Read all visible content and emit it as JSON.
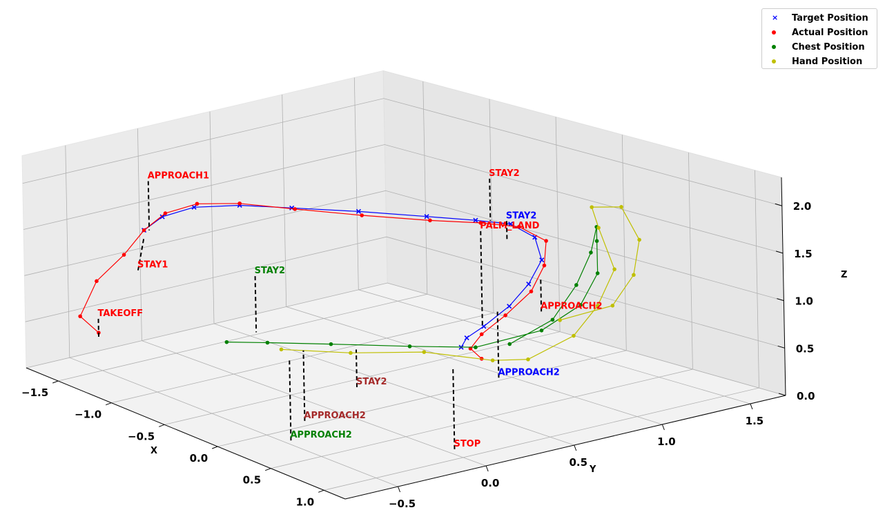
{
  "chart_data": {
    "type": "scatter3d",
    "xlabel": "X",
    "ylabel": "Y",
    "zlabel": "Z",
    "xlim": [
      -1.8,
      1.2
    ],
    "ylim": [
      -0.8,
      1.7
    ],
    "zlim": [
      0.0,
      2.3
    ],
    "x_ticks": [
      "−1.5",
      "−1.0",
      "−0.5",
      "0.0",
      "0.5",
      "1.0"
    ],
    "y_ticks": [
      "−0.5",
      "0.0",
      "0.5",
      "1.0",
      "1.5"
    ],
    "z_ticks": [
      "0.0",
      "0.5",
      "1.0",
      "1.5",
      "2.0"
    ],
    "grid": true,
    "legend_position": "top-right",
    "series": [
      {
        "name": "Target Position",
        "color": "#0000ff",
        "marker": "x",
        "points": [
          [
            -1.3,
            -0.35,
            1.55
          ],
          [
            -1.2,
            -0.3,
            1.72
          ],
          [
            -1.05,
            -0.2,
            1.85
          ],
          [
            -0.85,
            -0.05,
            1.9
          ],
          [
            -0.6,
            0.1,
            1.92
          ],
          [
            -0.3,
            0.3,
            1.93
          ],
          [
            0.0,
            0.5,
            1.92
          ],
          [
            0.2,
            0.65,
            1.9
          ],
          [
            0.35,
            0.75,
            1.88
          ],
          [
            0.45,
            0.82,
            1.75
          ],
          [
            0.6,
            0.75,
            1.6
          ],
          [
            0.7,
            0.6,
            1.45
          ],
          [
            0.75,
            0.45,
            1.3
          ],
          [
            0.75,
            0.3,
            1.15
          ],
          [
            0.72,
            0.22,
            1.05
          ],
          [
            0.7,
            0.2,
            0.95
          ]
        ]
      },
      {
        "name": "Actual Position",
        "color": "#ff0000",
        "marker": "o",
        "points": [
          [
            -1.25,
            -0.7,
            0.6
          ],
          [
            -1.35,
            -0.75,
            0.75
          ],
          [
            -1.4,
            -0.6,
            1.05
          ],
          [
            -1.35,
            -0.45,
            1.3
          ],
          [
            -1.3,
            -0.35,
            1.55
          ],
          [
            -1.2,
            -0.28,
            1.75
          ],
          [
            -1.05,
            -0.18,
            1.88
          ],
          [
            -0.85,
            -0.05,
            1.92
          ],
          [
            -0.6,
            0.12,
            1.9
          ],
          [
            -0.3,
            0.32,
            1.88
          ],
          [
            0.0,
            0.52,
            1.87
          ],
          [
            0.2,
            0.68,
            1.86
          ],
          [
            0.35,
            0.8,
            1.83
          ],
          [
            0.5,
            0.85,
            1.72
          ],
          [
            0.62,
            0.75,
            1.55
          ],
          [
            0.72,
            0.6,
            1.38
          ],
          [
            0.76,
            0.42,
            1.22
          ],
          [
            0.76,
            0.28,
            1.08
          ],
          [
            0.75,
            0.22,
            0.95
          ],
          [
            0.8,
            0.25,
            0.85
          ]
        ]
      },
      {
        "name": "Chest Position",
        "color": "#008000",
        "marker": "o",
        "points": [
          [
            -0.05,
            -0.7,
            1.05
          ],
          [
            0.1,
            -0.55,
            1.05
          ],
          [
            0.3,
            -0.3,
            1.02
          ],
          [
            0.55,
            0.0,
            0.98
          ],
          [
            0.75,
            0.25,
            0.95
          ],
          [
            0.8,
            0.6,
            1.0
          ],
          [
            0.7,
            0.9,
            1.1
          ],
          [
            0.5,
            1.15,
            1.25
          ],
          [
            0.3,
            1.3,
            1.45
          ],
          [
            0.3,
            1.3,
            1.6
          ],
          [
            0.45,
            1.15,
            1.45
          ],
          [
            0.6,
            0.95,
            1.25
          ],
          [
            0.75,
            0.7,
            1.05
          ],
          [
            0.82,
            0.4,
            0.95
          ]
        ]
      },
      {
        "name": "Hand Position",
        "color": "#bfbf00",
        "marker": "o",
        "points": [
          [
            0.15,
            -0.5,
            0.98
          ],
          [
            0.4,
            -0.25,
            0.95
          ],
          [
            0.6,
            0.05,
            0.92
          ],
          [
            0.82,
            0.3,
            0.82
          ],
          [
            0.9,
            0.45,
            0.8
          ],
          [
            0.85,
            0.75,
            0.9
          ],
          [
            0.7,
            1.0,
            1.05
          ],
          [
            0.5,
            1.25,
            1.25
          ],
          [
            0.25,
            1.35,
            1.55
          ],
          [
            0.2,
            1.35,
            1.75
          ],
          [
            0.3,
            1.45,
            1.75
          ],
          [
            0.5,
            1.4,
            1.5
          ],
          [
            0.65,
            1.25,
            1.25
          ],
          [
            0.75,
            1.05,
            1.05
          ],
          [
            0.6,
            0.85,
            0.92
          ]
        ]
      }
    ],
    "annotations": [
      {
        "text": "APPROACH1",
        "color": "#ff0000",
        "point": [
          -1.28,
          -0.33,
          2.08
        ],
        "stem_to": [
          -1.28,
          -0.33,
          1.55
        ]
      },
      {
        "text": "STAY1",
        "color": "#ff0000",
        "point": [
          -1.32,
          -0.38,
          1.12
        ],
        "stem_to": [
          -1.3,
          -0.35,
          1.48
        ]
      },
      {
        "text": "TAKEOFF",
        "color": "#ff0000",
        "point": [
          -1.25,
          -0.7,
          0.75
        ],
        "stem_to": [
          -1.25,
          -0.7,
          0.55
        ]
      },
      {
        "text": "PALM_LAND",
        "color": "#ff0000",
        "point": [
          0.45,
          0.5,
          1.95
        ],
        "stem_to": [
          0.45,
          0.5,
          0.95
        ]
      },
      {
        "text": "STAY2",
        "color": "#ff0000",
        "point": [
          0.05,
          0.85,
          2.2
        ],
        "stem_to": [
          0.05,
          0.85,
          1.75
        ]
      },
      {
        "text": "STAY2",
        "color": "#0000ff",
        "point": [
          0.25,
          0.8,
          1.85
        ],
        "stem_to": [
          0.25,
          0.8,
          1.65
        ]
      },
      {
        "text": "STAY2",
        "color": "#008000",
        "point": [
          -0.3,
          -0.35,
          1.5
        ],
        "stem_to": [
          -0.3,
          -0.35,
          0.9
        ]
      },
      {
        "text": "STAY2",
        "color": "#a52a2a",
        "point": [
          0.3,
          -0.15,
          0.5
        ],
        "stem_to": [
          0.3,
          -0.15,
          0.9
        ]
      },
      {
        "text": "APPROACH2",
        "color": "#ff0000",
        "point": [
          0.45,
          0.85,
          0.95
        ],
        "stem_to": [
          0.45,
          0.85,
          1.3
        ]
      },
      {
        "text": "APPROACH2",
        "color": "#0000ff",
        "point": [
          0.65,
          0.45,
          0.5
        ],
        "stem_to": [
          0.65,
          0.45,
          1.2
        ]
      },
      {
        "text": "APPROACH2",
        "color": "#a52a2a",
        "point": [
          0.2,
          -0.4,
          0.2
        ],
        "stem_to": [
          0.2,
          -0.4,
          0.95
        ]
      },
      {
        "text": "APPROACH2",
        "color": "#008000",
        "point": [
          0.3,
          -0.55,
          0.1
        ],
        "stem_to": [
          0.3,
          -0.55,
          0.95
        ]
      },
      {
        "text": "STOP",
        "color": "#ff0000",
        "point": [
          0.85,
          0.05,
          0.0
        ],
        "stem_to": [
          0.85,
          0.05,
          0.85
        ]
      }
    ]
  }
}
